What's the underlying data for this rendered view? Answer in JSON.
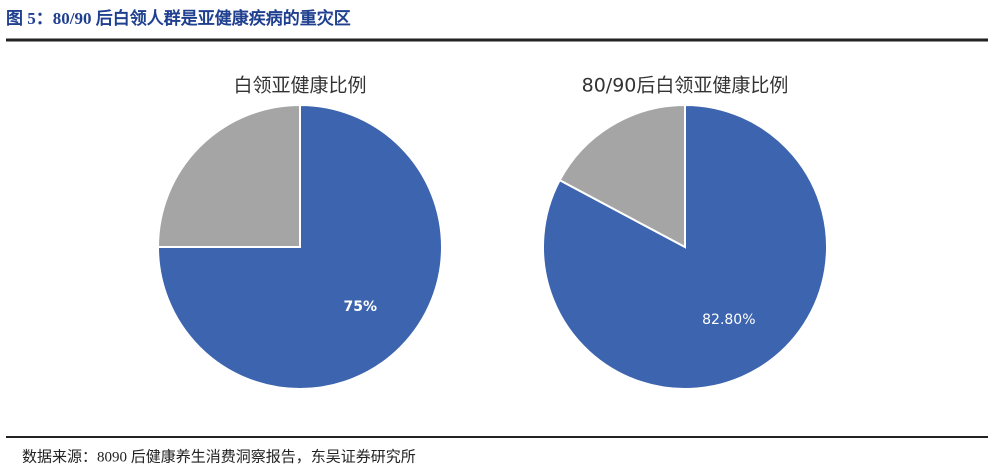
{
  "header": {
    "title": "图 5：80/90 后白领人群是亚健康疾病的重灾区"
  },
  "chart_data": [
    {
      "type": "pie",
      "title": "白领亚健康比例",
      "values": [
        75,
        25
      ],
      "value_labels": [
        "75%",
        null
      ],
      "colors": [
        "#3d64ae",
        "#a5a5a5"
      ]
    },
    {
      "type": "pie",
      "title": "80/90后白领亚健康比例",
      "values": [
        82.8,
        17.2
      ],
      "value_labels": [
        "82.80%",
        null
      ],
      "colors": [
        "#3d64ae",
        "#a5a5a5"
      ]
    }
  ],
  "footer": {
    "source": "数据来源：8090 后健康养生消费洞察报告，东吴证券研究所"
  }
}
